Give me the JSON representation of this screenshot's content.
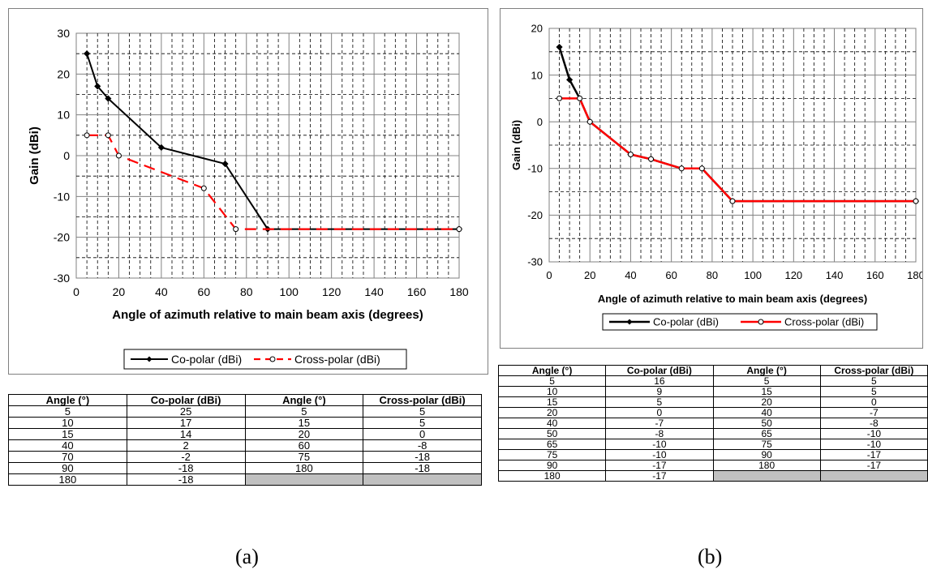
{
  "chart_data": [
    {
      "type": "line",
      "xlabel": "Angle of azimuth relative to main beam axis (degrees)",
      "ylabel": "Gain (dBi)",
      "xlim": [
        0,
        180
      ],
      "ylim": [
        -30,
        30
      ],
      "x_ticks": [
        "0",
        "20",
        "40",
        "60",
        "80",
        "100",
        "120",
        "140",
        "160",
        "180"
      ],
      "y_ticks": [
        "30",
        "20",
        "10",
        "0",
        "-10",
        "-20",
        "-30"
      ],
      "grid": true,
      "legend": "bottom",
      "series": [
        {
          "name": "Co-polar (dBi)",
          "color": "#000000",
          "marker": "filled-diamond",
          "x": [
            5,
            10,
            15,
            40,
            70,
            90,
            180
          ],
          "y": [
            25,
            17,
            14,
            2,
            -2,
            -18,
            -18
          ]
        },
        {
          "name": "Cross-polar (dBi)",
          "color": "#ff0000",
          "marker": "open-circle",
          "dashed": true,
          "x": [
            5,
            15,
            20,
            60,
            75,
            180
          ],
          "y": [
            5,
            5,
            0,
            -8,
            -18,
            -18
          ]
        }
      ]
    },
    {
      "type": "line",
      "xlabel": "Angle of azimuth relative to main beam axis (degrees)",
      "ylabel": "Gain (dBi)",
      "xlim": [
        0,
        180
      ],
      "ylim": [
        -30,
        20
      ],
      "x_ticks": [
        "0",
        "20",
        "40",
        "60",
        "80",
        "100",
        "120",
        "140",
        "160",
        "180"
      ],
      "y_ticks": [
        "20",
        "10",
        "0",
        "-10",
        "-20",
        "-30"
      ],
      "grid": true,
      "legend": "bottom",
      "series": [
        {
          "name": "Co-polar (dBi)",
          "color": "#000000",
          "marker": "filled-diamond",
          "x": [
            5,
            10,
            15,
            20,
            40,
            50,
            65,
            75,
            90,
            180
          ],
          "y": [
            16,
            9,
            5,
            0,
            -7,
            -8,
            -10,
            -10,
            -17,
            -17
          ]
        },
        {
          "name": "Cross-polar (dBi)",
          "color": "#ff0000",
          "marker": "open-circle",
          "dashed": false,
          "x": [
            5,
            15,
            20,
            40,
            50,
            65,
            75,
            90,
            180
          ],
          "y": [
            5,
            5,
            0,
            -7,
            -8,
            -10,
            -10,
            -17,
            -17
          ]
        }
      ]
    }
  ],
  "tables": [
    {
      "headers": [
        "Angle (°)",
        "Co-polar (dBi)",
        "Angle (°)",
        "Cross-polar (dBi)"
      ],
      "rows": [
        [
          "5",
          "25",
          "5",
          "5"
        ],
        [
          "10",
          "17",
          "15",
          "5"
        ],
        [
          "15",
          "14",
          "20",
          "0"
        ],
        [
          "40",
          "2",
          "60",
          "-8"
        ],
        [
          "70",
          "-2",
          "75",
          "-18"
        ],
        [
          "90",
          "-18",
          "180",
          "-18"
        ],
        [
          "180",
          "-18",
          "",
          ""
        ]
      ]
    },
    {
      "headers": [
        "Angle (°)",
        "Co-polar (dBi)",
        "Angle (°)",
        "Cross-polar (dBi)"
      ],
      "rows": [
        [
          "5",
          "16",
          "5",
          "5"
        ],
        [
          "10",
          "9",
          "15",
          "5"
        ],
        [
          "15",
          "5",
          "20",
          "0"
        ],
        [
          "20",
          "0",
          "40",
          "-7"
        ],
        [
          "40",
          "-7",
          "50",
          "-8"
        ],
        [
          "50",
          "-8",
          "65",
          "-10"
        ],
        [
          "65",
          "-10",
          "75",
          "-10"
        ],
        [
          "75",
          "-10",
          "90",
          "-17"
        ],
        [
          "90",
          "-17",
          "180",
          "-17"
        ],
        [
          "180",
          "-17",
          "",
          ""
        ]
      ]
    }
  ],
  "captions": [
    "(a)",
    "(b)"
  ]
}
